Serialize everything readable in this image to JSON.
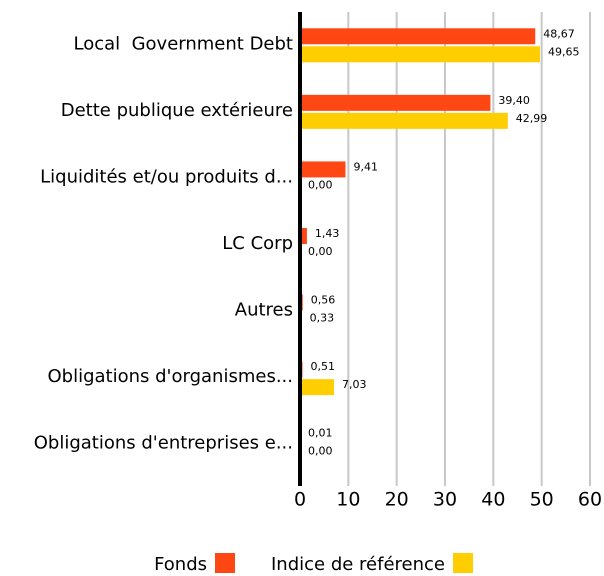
{
  "chart_data": {
    "type": "hbar",
    "categories": [
      "Local  Government Debt",
      "Dette publique extérieure",
      "Liquidités et/ou produits d...",
      "LC Corp",
      "Autres",
      "Obligations d'organismes...",
      "Obligations d'entreprises e..."
    ],
    "series": [
      {
        "name": "Fonds",
        "color": "#ff4713",
        "values": [
          48.67,
          39.4,
          9.41,
          1.43,
          0.56,
          0.51,
          0.01
        ],
        "value_labels": [
          "48,67",
          "39,40",
          "9,41",
          "1,43",
          "0,56",
          "0,51",
          "0,01"
        ]
      },
      {
        "name": "Indice de référence",
        "color": "#ffce00",
        "values": [
          49.65,
          42.99,
          0.0,
          0.0,
          0.33,
          7.03,
          0.0
        ],
        "value_labels": [
          "49,65",
          "42,99",
          "0,00",
          "0,00",
          "0,33",
          "7,03",
          "0,00"
        ]
      }
    ],
    "xlim": [
      0,
      60
    ],
    "xticks": [
      0,
      10,
      20,
      30,
      40,
      50,
      60
    ],
    "grid": true
  }
}
